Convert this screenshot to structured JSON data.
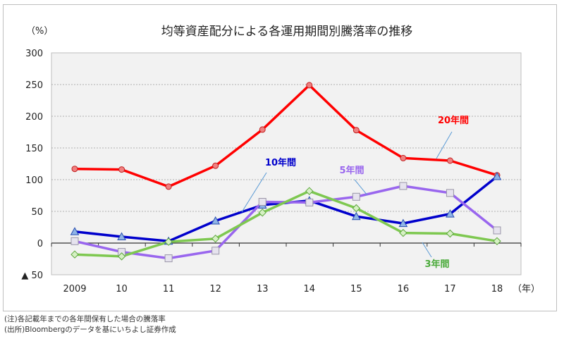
{
  "chart_data": {
    "type": "line",
    "title": "均等資産配分による各運用期間別騰落率の推移",
    "ylabel": "（%）",
    "xlabel": "（年）",
    "categories": [
      "2009",
      "10",
      "11",
      "12",
      "13",
      "14",
      "15",
      "16",
      "17",
      "18"
    ],
    "ylim": [
      -50,
      300
    ],
    "yticks": [
      300,
      250,
      200,
      150,
      100,
      50,
      0,
      -50
    ],
    "ytick_labels": [
      "300",
      "250",
      "200",
      "150",
      "100",
      "50",
      "0",
      "▲ 50"
    ],
    "grid": true,
    "series": [
      {
        "name": "20年間",
        "color": "#ff0000",
        "marker": "circle",
        "values": [
          117,
          116,
          89,
          122,
          179,
          249,
          178,
          134,
          130,
          107
        ]
      },
      {
        "name": "10年間",
        "color": "#0000cc",
        "marker": "triangle",
        "values": [
          18,
          10,
          3,
          35,
          60,
          67,
          42,
          31,
          46,
          105
        ]
      },
      {
        "name": "5年間",
        "color": "#9966ee",
        "marker": "square",
        "values": [
          3,
          -14,
          -24,
          -12,
          65,
          64,
          73,
          90,
          79,
          20
        ]
      },
      {
        "name": "3年間",
        "color": "#7ec850",
        "marker": "diamond",
        "values": [
          -18,
          -21,
          2,
          7,
          48,
          82,
          55,
          16,
          15,
          3
        ]
      }
    ]
  },
  "notes": [
    "(注)各記載年までの各年間保有した場合の騰落率",
    "(出所)Bloombergのデータを基にいちよし証券作成"
  ]
}
